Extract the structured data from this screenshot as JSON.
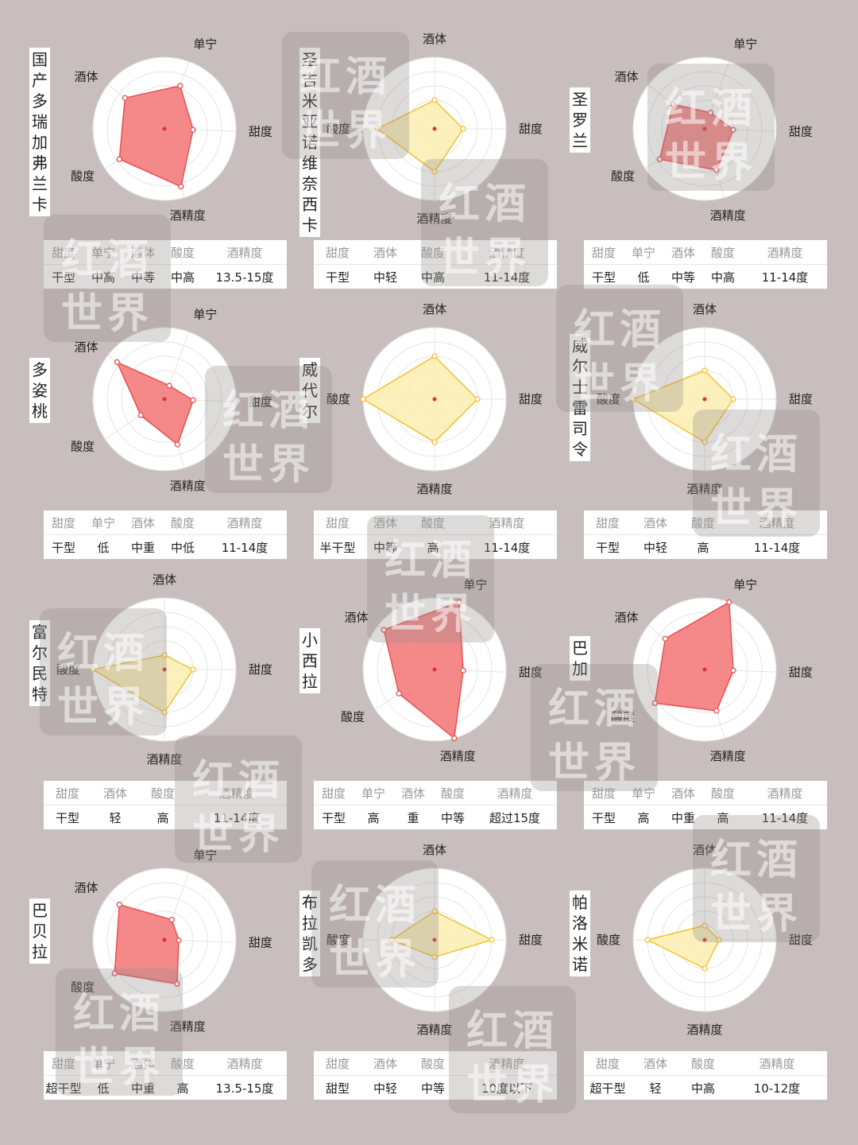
{
  "colors": {
    "red_fill": "#f47c7c",
    "red_line": "#e85050",
    "yellow_fill": "#fbeeb0",
    "yellow_line": "#f2c230",
    "center_dot": "#e03030",
    "background": "#c9bebe"
  },
  "watermark": {
    "line1": "红酒",
    "line2": "世界"
  },
  "chart_data": [
    {
      "type": "radar",
      "name": "国产多瑞加弗兰卡",
      "color": "red",
      "axes": [
        "单宁",
        "甜度",
        "酒精度",
        "酸度",
        "酒体"
      ],
      "values": [
        3.2,
        2,
        4.2,
        3.8,
        3.5
      ],
      "rmax": 5,
      "start_angle": 70,
      "table": {
        "headers": [
          "甜度",
          "单宁",
          "酒体",
          "酸度",
          "酒精度"
        ],
        "values": [
          "干型",
          "中高",
          "中等",
          "中高",
          "13.5-15度"
        ]
      }
    },
    {
      "type": "radar",
      "name": "圣吉米亚诺维奈西卡",
      "color": "yellow",
      "axes": [
        "酒体",
        "甜度",
        "酒精度",
        "酸度"
      ],
      "values": [
        2,
        2,
        3,
        4
      ],
      "rmax": 5,
      "start_angle": 90,
      "table": {
        "headers": [
          "甜度",
          "酒体",
          "酸度",
          "酒精度"
        ],
        "values": [
          "干型",
          "中轻",
          "中高",
          "11-14度"
        ]
      }
    },
    {
      "type": "radar",
      "name": "圣罗兰",
      "color": "red",
      "axes": [
        "单宁",
        "甜度",
        "酒精度",
        "酸度",
        "酒体"
      ],
      "values": [
        1.2,
        2,
        3,
        3.8,
        2.8
      ],
      "rmax": 5,
      "start_angle": 70,
      "table": {
        "headers": [
          "甜度",
          "单宁",
          "酒体",
          "酸度",
          "酒精度"
        ],
        "values": [
          "干型",
          "低",
          "中等",
          "中高",
          "11-14度"
        ]
      }
    },
    {
      "type": "radar",
      "name": "多姿桃",
      "color": "red",
      "axes": [
        "单宁",
        "甜度",
        "酒精度",
        "酸度",
        "酒体"
      ],
      "values": [
        1,
        2,
        3.3,
        2,
        4.2
      ],
      "rmax": 5,
      "start_angle": 70,
      "table": {
        "headers": [
          "甜度",
          "单宁",
          "酒体",
          "酸度",
          "酒精度"
        ],
        "values": [
          "干型",
          "低",
          "中重",
          "中低",
          "11-14度"
        ]
      }
    },
    {
      "type": "radar",
      "name": "威代尔",
      "color": "yellow",
      "axes": [
        "酒体",
        "甜度",
        "酒精度",
        "酸度"
      ],
      "values": [
        3,
        3,
        3,
        5
      ],
      "rmax": 5,
      "start_angle": 90,
      "table": {
        "headers": [
          "甜度",
          "酒体",
          "酸度",
          "酒精度"
        ],
        "values": [
          "半干型",
          "中等",
          "高",
          "11-14度"
        ]
      }
    },
    {
      "type": "radar",
      "name": "威尔士雷司令",
      "color": "yellow",
      "axes": [
        "酒体",
        "甜度",
        "酒精度",
        "酸度"
      ],
      "values": [
        2,
        2,
        3,
        5
      ],
      "rmax": 5,
      "start_angle": 90,
      "table": {
        "headers": [
          "甜度",
          "酒体",
          "酸度",
          "酒精度"
        ],
        "values": [
          "干型",
          "中轻",
          "高",
          "11-14度"
        ]
      }
    },
    {
      "type": "radar",
      "name": "富尔民特",
      "color": "yellow",
      "axes": [
        "酒体",
        "甜度",
        "酒精度",
        "酸度"
      ],
      "values": [
        1,
        2,
        3,
        5
      ],
      "rmax": 5,
      "start_angle": 90,
      "table": {
        "headers": [
          "甜度",
          "酒体",
          "酸度",
          "酒精度"
        ],
        "values": [
          "干型",
          "轻",
          "高",
          "11-14度"
        ]
      }
    },
    {
      "type": "radar",
      "name": "小西拉",
      "color": "red",
      "axes": [
        "单宁",
        "甜度",
        "酒精度",
        "酸度",
        "酒体"
      ],
      "values": [
        5,
        2,
        5,
        3,
        4.5
      ],
      "rmax": 5,
      "start_angle": 70,
      "table": {
        "headers": [
          "甜度",
          "单宁",
          "酒体",
          "酸度",
          "酒精度"
        ],
        "values": [
          "干型",
          "高",
          "重",
          "中等",
          "超过15度"
        ]
      }
    },
    {
      "type": "radar",
      "name": "巴加",
      "color": "red",
      "axes": [
        "单宁",
        "甜度",
        "酒精度",
        "酸度",
        "酒体"
      ],
      "values": [
        5,
        2,
        3,
        4.2,
        3.5
      ],
      "rmax": 5,
      "start_angle": 70,
      "table": {
        "headers": [
          "甜度",
          "单宁",
          "酒体",
          "酸度",
          "酒精度"
        ],
        "values": [
          "干型",
          "高",
          "中重",
          "高",
          "11-14度"
        ]
      }
    },
    {
      "type": "radar",
      "name": "巴贝拉",
      "color": "red",
      "axes": [
        "单宁",
        "甜度",
        "酒精度",
        "酸度",
        "酒体"
      ],
      "values": [
        1.5,
        1,
        3.2,
        4.2,
        4
      ],
      "rmax": 5,
      "start_angle": 70,
      "table": {
        "headers": [
          "甜度",
          "单宁",
          "酒体",
          "酸度",
          "酒精度"
        ],
        "values": [
          "超干型",
          "低",
          "中重",
          "高",
          "13.5-15度"
        ]
      }
    },
    {
      "type": "radar",
      "name": "布拉凯多",
      "color": "yellow",
      "axes": [
        "酒体",
        "甜度",
        "酒精度",
        "酸度"
      ],
      "values": [
        2,
        4,
        1.2,
        3
      ],
      "rmax": 5,
      "start_angle": 90,
      "table": {
        "headers": [
          "甜度",
          "酒体",
          "酸度",
          "酒精度"
        ],
        "values": [
          "甜型",
          "中轻",
          "中等",
          "10度以下"
        ]
      }
    },
    {
      "type": "radar",
      "name": "帕洛米诺",
      "color": "yellow",
      "axes": [
        "酒体",
        "甜度",
        "酒精度",
        "酸度"
      ],
      "values": [
        1,
        1,
        2,
        4
      ],
      "rmax": 5,
      "start_angle": 90,
      "table": {
        "headers": [
          "甜度",
          "酒体",
          "酸度",
          "酒精度"
        ],
        "values": [
          "超干型",
          "轻",
          "中高",
          "10-12度"
        ]
      }
    }
  ]
}
